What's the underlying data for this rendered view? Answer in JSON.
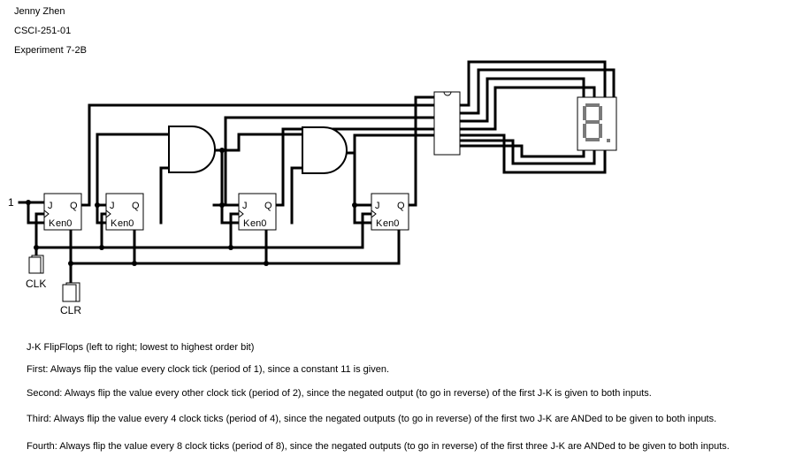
{
  "header": {
    "author": "Jenny Zhen",
    "course": "CSCI-251-01",
    "experiment": "Experiment 7-2B"
  },
  "circuit": {
    "constant_input": "1",
    "clock_label": "CLK",
    "clear_label": "CLR",
    "flipflops": [
      {
        "j": "J",
        "q": "Q",
        "k": "K",
        "en": "en0"
      },
      {
        "j": "J",
        "q": "Q",
        "k": "K",
        "en": "en0"
      },
      {
        "j": "J",
        "q": "Q",
        "k": "K",
        "en": "en0"
      },
      {
        "j": "J",
        "q": "Q",
        "k": "K",
        "en": "en0"
      }
    ]
  },
  "notes": {
    "title": "J-K FlipFlops (left to right; lowest to highest order bit)",
    "first": "First: Always flip the value every clock tick (period of 1), since a constant 11 is given.",
    "second": "Second: Always flip the value every other clock tick (period of 2), since the negated output (to go in reverse) of the first J-K is given to both inputs.",
    "third": "Third: Always flip the value every 4 clock ticks (period of 4), since the negated outputs (to go in reverse) of the first two J-K are ANDed to be given to both inputs.",
    "fourth": "Fourth: Always flip the value every 8 clock ticks (period of 8), since the negated outputs (to go in reverse) of the first three J-K are ANDed to be given to both inputs."
  }
}
